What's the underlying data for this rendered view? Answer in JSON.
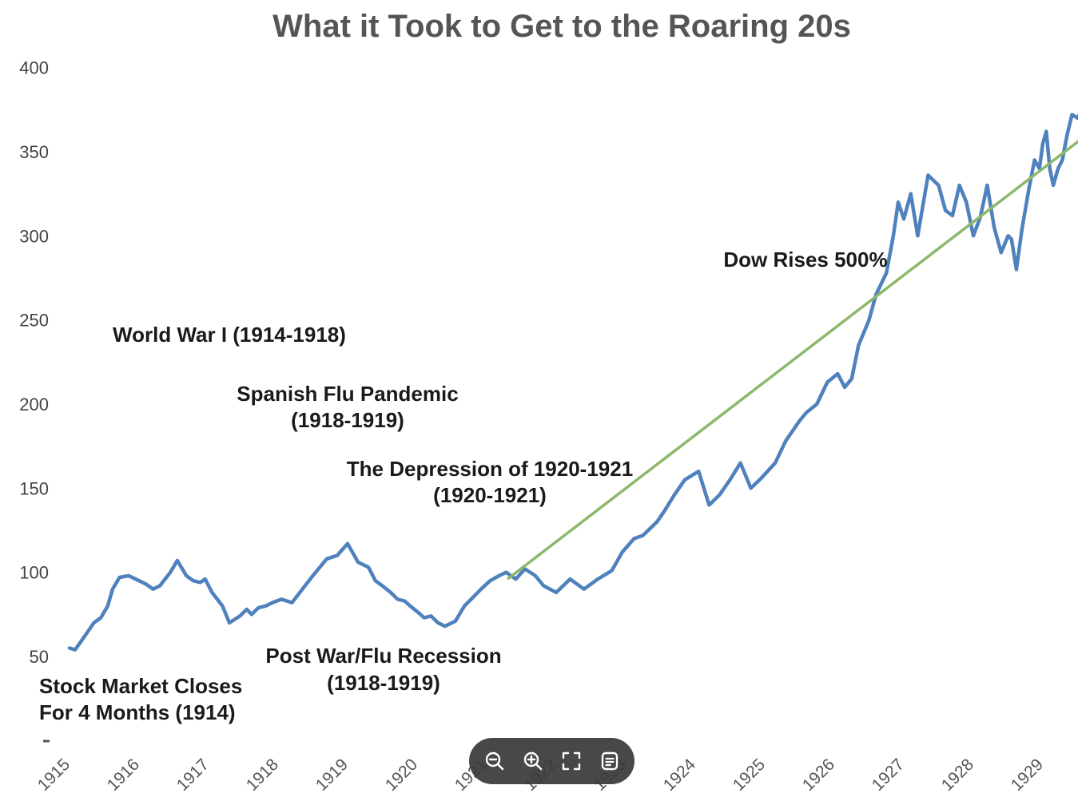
{
  "chart_data": {
    "type": "line",
    "title": "What it Took to Get to the Roaring 20s",
    "xlabel": "",
    "ylabel": "",
    "ylim": [
      50,
      400
    ],
    "xlim": [
      1915,
      1929.95
    ],
    "y_ticks": [
      "400",
      "350",
      "300",
      "250",
      "200",
      "150",
      "100",
      "50"
    ],
    "x_ticks": [
      "1915",
      "1916",
      "1917",
      "1918",
      "1919",
      "1920",
      "1921",
      "1922",
      "1923",
      "1924",
      "1925",
      "1926",
      "1927",
      "1928",
      "1929"
    ],
    "grid": false,
    "legend": "none",
    "series": [
      {
        "color": "#4f81bd",
        "x": [
          1915.0,
          1915.08,
          1915.15,
          1915.25,
          1915.35,
          1915.45,
          1915.55,
          1915.62,
          1915.72,
          1915.85,
          1916.0,
          1916.1,
          1916.2,
          1916.3,
          1916.45,
          1916.55,
          1916.68,
          1916.78,
          1916.88,
          1916.95,
          1917.05,
          1917.2,
          1917.3,
          1917.45,
          1917.55,
          1917.62,
          1917.72,
          1917.82,
          1917.92,
          1918.05,
          1918.2,
          1918.35,
          1918.5,
          1918.7,
          1918.85,
          1919.0,
          1919.15,
          1919.3,
          1919.4,
          1919.5,
          1919.62,
          1919.72,
          1919.82,
          1919.9,
          1920.02,
          1920.1,
          1920.2,
          1920.3,
          1920.4,
          1920.55,
          1920.68,
          1920.8,
          1920.92,
          1921.05,
          1921.18,
          1921.28,
          1921.42,
          1921.55,
          1921.7,
          1921.82,
          1922.0,
          1922.2,
          1922.4,
          1922.6,
          1922.8,
          1922.95,
          1923.12,
          1923.25,
          1923.45,
          1923.55,
          1923.7,
          1923.85,
          1924.05,
          1924.2,
          1924.35,
          1924.5,
          1924.65,
          1924.8,
          1924.95,
          1925.15,
          1925.3,
          1925.5,
          1925.6,
          1925.75,
          1925.9,
          1926.05,
          1926.15,
          1926.25,
          1926.35,
          1926.45,
          1926.5,
          1926.6,
          1926.75,
          1926.85,
          1926.92,
          1927.0,
          1927.1,
          1927.2,
          1927.35,
          1927.5,
          1927.6,
          1927.7,
          1927.8,
          1927.9,
          1928.0,
          1928.1,
          1928.2,
          1928.3,
          1928.4,
          1928.5,
          1928.55,
          1928.62,
          1928.7,
          1928.8,
          1928.88,
          1928.95,
          1929.0,
          1929.05,
          1929.1,
          1929.15,
          1929.22,
          1929.28,
          1929.35,
          1929.42,
          1929.5,
          1929.55,
          1929.6,
          1929.65,
          1929.72,
          1929.78,
          1929.83,
          1929.88,
          1929.95
        ],
        "y": [
          55,
          54,
          58,
          64,
          70,
          73,
          80,
          90,
          97,
          98,
          95,
          93,
          90,
          92,
          100,
          107,
          98,
          95,
          94,
          96,
          88,
          80,
          70,
          74,
          78,
          75,
          79,
          80,
          82,
          84,
          82,
          90,
          98,
          108,
          110,
          117,
          106,
          103,
          95,
          92,
          88,
          84,
          83,
          80,
          76,
          73,
          74,
          70,
          68,
          71,
          80,
          85,
          90,
          95,
          98,
          100,
          96,
          102,
          98,
          92,
          88,
          96,
          90,
          96,
          101,
          112,
          120,
          122,
          130,
          136,
          146,
          155,
          160,
          140,
          146,
          155,
          165,
          150,
          156,
          165,
          178,
          190,
          195,
          200,
          213,
          218,
          210,
          215,
          235,
          245,
          250,
          265,
          278,
          300,
          320,
          310,
          325,
          300,
          336,
          330,
          315,
          312,
          330,
          320,
          300,
          311,
          330,
          305,
          290,
          300,
          298,
          280,
          304,
          328,
          345,
          340,
          355,
          362,
          340,
          330,
          340,
          345,
          360,
          372,
          370,
          374,
          369,
          370,
          372,
          374,
          371,
          368,
          373
        ]
      }
    ],
    "trend_arrow": {
      "color": "#8db86b",
      "from": [
        1921.3,
        96
      ],
      "to": [
        1929.95,
        370
      ]
    },
    "annotations": [
      {
        "lines": [
          "World War I (1914-1918)"
        ]
      },
      {
        "lines": [
          "Spanish Flu Pandemic",
          "(1918-1919)"
        ]
      },
      {
        "lines": [
          "The Depression of 1920-1921",
          "(1920-1921)"
        ]
      },
      {
        "lines": [
          "Dow Rises 500%"
        ]
      },
      {
        "lines": [
          "Post War/Flu Recession",
          "(1918-1919)"
        ]
      },
      {
        "lines": [
          "Stock Market Closes",
          "For 4 Months (1914)"
        ]
      }
    ]
  },
  "toolbar": {
    "buttons": [
      {
        "name": "zoom-out-button",
        "icon": "zoom-out-icon"
      },
      {
        "name": "zoom-in-button",
        "icon": "zoom-in-icon"
      },
      {
        "name": "fullscreen-button",
        "icon": "fullscreen-icon"
      },
      {
        "name": "details-button",
        "icon": "document-icon"
      }
    ]
  }
}
